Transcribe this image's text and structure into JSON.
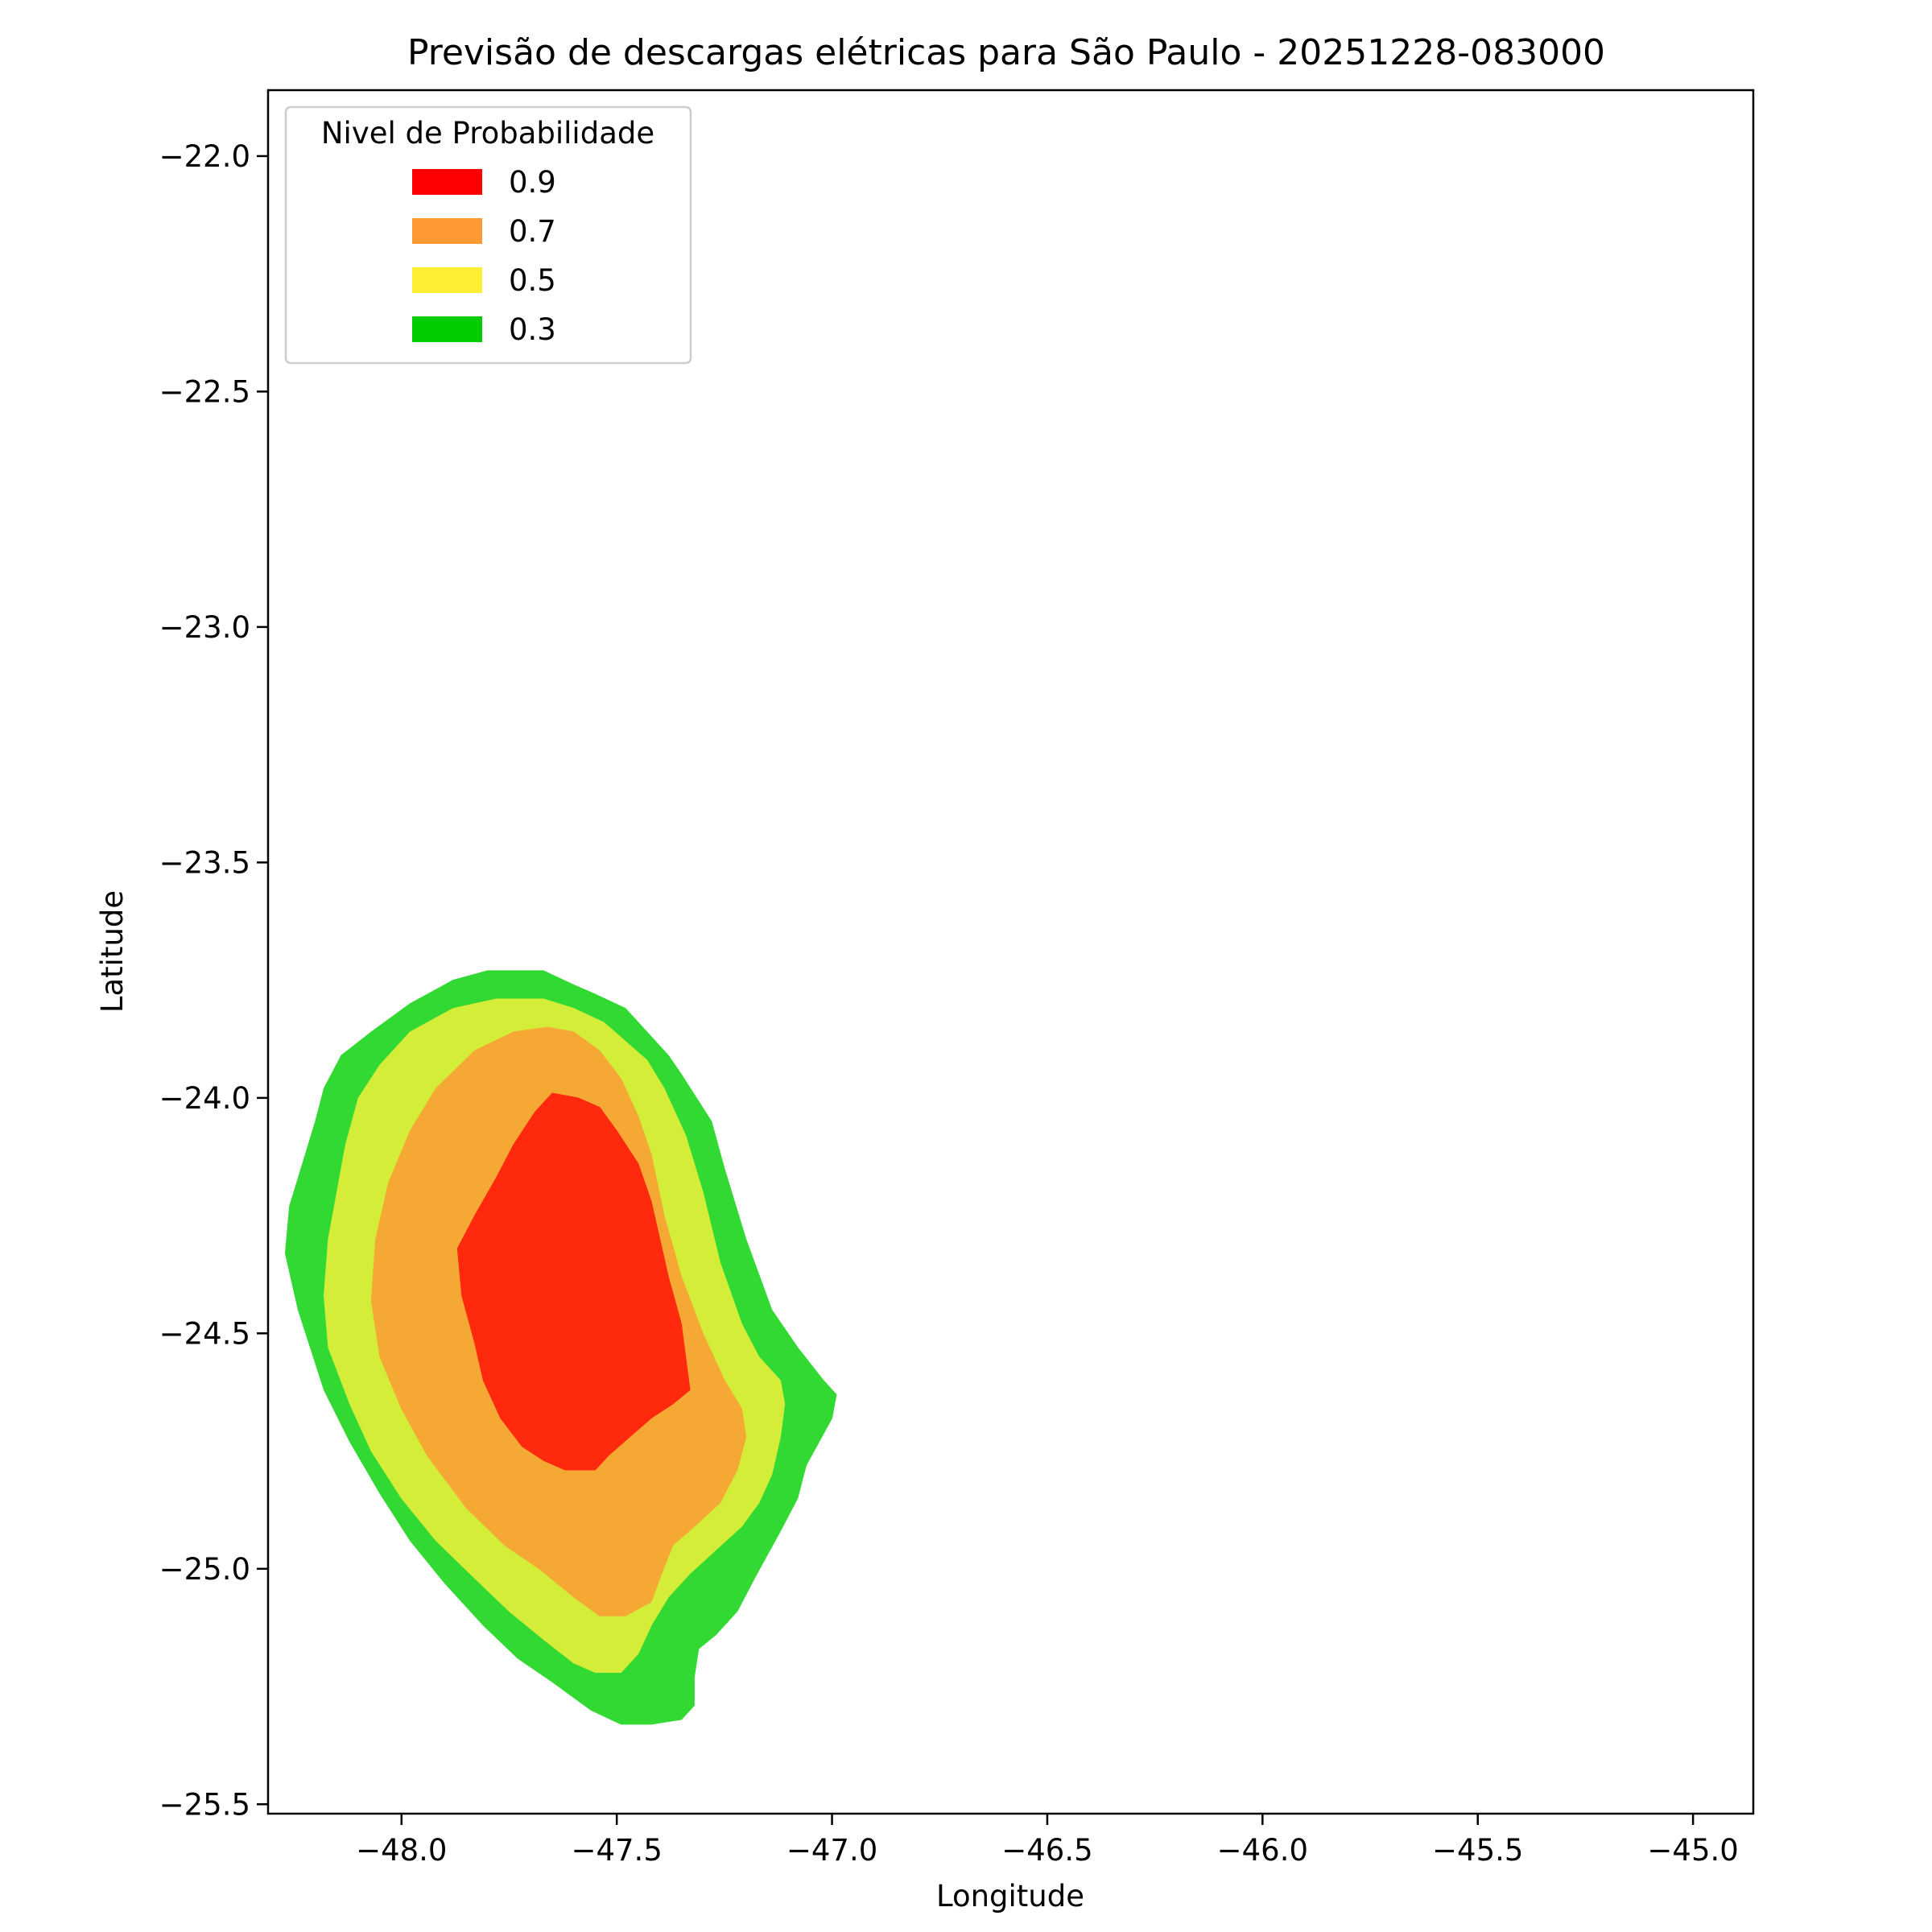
{
  "chart_data": {
    "type": "area",
    "title": "Previsão de descargas elétricas para São Paulo - 20251228-083000",
    "xlabel": "Longitude",
    "ylabel": "Latitude",
    "xlim": [
      -48.31,
      -44.86
    ],
    "ylim": [
      -25.52,
      -21.86
    ],
    "xticks": [
      -48.0,
      -47.5,
      -47.0,
      -46.5,
      -46.0,
      -45.5,
      -45.0
    ],
    "yticks": [
      -22.0,
      -22.5,
      -23.0,
      -23.5,
      -24.0,
      -24.5,
      -25.0,
      -25.5
    ],
    "xtick_labels": [
      "−48.0",
      "−47.5",
      "−47.0",
      "−46.5",
      "−46.0",
      "−45.5",
      "−45.0"
    ],
    "ytick_labels": [
      "−22.0",
      "−22.5",
      "−23.0",
      "−23.5",
      "−24.0",
      "−24.5",
      "−25.0",
      "−25.5"
    ],
    "grid": false,
    "legend": {
      "title": "Nivel de Probabilidade",
      "position": "top-left",
      "entries": [
        {
          "label": "0.9",
          "color": "#ff0000"
        },
        {
          "label": "0.7",
          "color": "#ff9933"
        },
        {
          "label": "0.5",
          "color": "#ffee33"
        },
        {
          "label": "0.3",
          "color": "#00cc00"
        }
      ]
    },
    "series": [
      {
        "name": "0.3",
        "fill_color": "#33d933",
        "polygon": [
          [
            -47.67,
            -23.73
          ],
          [
            -47.6,
            -23.76
          ],
          [
            -47.55,
            -23.78
          ],
          [
            -47.48,
            -23.81
          ],
          [
            -47.43,
            -23.86
          ],
          [
            -47.38,
            -23.91
          ],
          [
            -47.35,
            -23.95
          ],
          [
            -47.28,
            -24.05
          ],
          [
            -47.25,
            -24.15
          ],
          [
            -47.2,
            -24.3
          ],
          [
            -47.14,
            -24.45
          ],
          [
            -47.08,
            -24.53
          ],
          [
            -47.02,
            -24.6
          ],
          [
            -46.99,
            -24.63
          ],
          [
            -47.0,
            -24.68
          ],
          [
            -47.03,
            -24.73
          ],
          [
            -47.06,
            -24.78
          ],
          [
            -47.08,
            -24.85
          ],
          [
            -47.12,
            -24.92
          ],
          [
            -47.15,
            -24.97
          ],
          [
            -47.18,
            -25.02
          ],
          [
            -47.22,
            -25.09
          ],
          [
            -47.27,
            -25.14
          ],
          [
            -47.31,
            -25.17
          ],
          [
            -47.32,
            -25.23
          ],
          [
            -47.32,
            -25.29
          ],
          [
            -47.35,
            -25.32
          ],
          [
            -47.42,
            -25.33
          ],
          [
            -47.49,
            -25.33
          ],
          [
            -47.56,
            -25.3
          ],
          [
            -47.65,
            -25.24
          ],
          [
            -47.73,
            -25.19
          ],
          [
            -47.81,
            -25.12
          ],
          [
            -47.9,
            -25.03
          ],
          [
            -47.98,
            -24.94
          ],
          [
            -48.05,
            -24.84
          ],
          [
            -48.12,
            -24.73
          ],
          [
            -48.18,
            -24.62
          ],
          [
            -48.24,
            -24.45
          ],
          [
            -48.27,
            -24.33
          ],
          [
            -48.26,
            -24.23
          ],
          [
            -48.23,
            -24.14
          ],
          [
            -48.2,
            -24.05
          ],
          [
            -48.18,
            -23.98
          ],
          [
            -48.14,
            -23.91
          ],
          [
            -48.07,
            -23.86
          ],
          [
            -47.98,
            -23.8
          ],
          [
            -47.88,
            -23.75
          ],
          [
            -47.8,
            -23.73
          ]
        ]
      },
      {
        "name": "0.5",
        "fill_color": "#d4ed38",
        "polygon": [
          [
            -47.67,
            -23.79
          ],
          [
            -47.6,
            -23.81
          ],
          [
            -47.53,
            -23.84
          ],
          [
            -47.48,
            -23.88
          ],
          [
            -47.43,
            -23.92
          ],
          [
            -47.39,
            -23.98
          ],
          [
            -47.34,
            -24.08
          ],
          [
            -47.3,
            -24.2
          ],
          [
            -47.26,
            -24.35
          ],
          [
            -47.21,
            -24.48
          ],
          [
            -47.17,
            -24.55
          ],
          [
            -47.12,
            -24.6
          ],
          [
            -47.11,
            -24.65
          ],
          [
            -47.12,
            -24.72
          ],
          [
            -47.14,
            -24.8
          ],
          [
            -47.17,
            -24.86
          ],
          [
            -47.21,
            -24.91
          ],
          [
            -47.27,
            -24.96
          ],
          [
            -47.33,
            -25.01
          ],
          [
            -47.38,
            -25.06
          ],
          [
            -47.42,
            -25.12
          ],
          [
            -47.45,
            -25.18
          ],
          [
            -47.49,
            -25.22
          ],
          [
            -47.55,
            -25.22
          ],
          [
            -47.6,
            -25.2
          ],
          [
            -47.67,
            -25.15
          ],
          [
            -47.75,
            -25.09
          ],
          [
            -47.83,
            -25.02
          ],
          [
            -47.92,
            -24.94
          ],
          [
            -48.0,
            -24.85
          ],
          [
            -48.07,
            -24.75
          ],
          [
            -48.12,
            -24.65
          ],
          [
            -48.17,
            -24.53
          ],
          [
            -48.18,
            -24.42
          ],
          [
            -48.17,
            -24.3
          ],
          [
            -48.15,
            -24.2
          ],
          [
            -48.13,
            -24.1
          ],
          [
            -48.1,
            -24.0
          ],
          [
            -48.05,
            -23.93
          ],
          [
            -47.98,
            -23.86
          ],
          [
            -47.88,
            -23.81
          ],
          [
            -47.78,
            -23.79
          ]
        ]
      },
      {
        "name": "0.7",
        "fill_color": "#f5a934",
        "polygon": [
          [
            -47.66,
            -23.85
          ],
          [
            -47.6,
            -23.86
          ],
          [
            -47.54,
            -23.9
          ],
          [
            -47.49,
            -23.96
          ],
          [
            -47.45,
            -24.04
          ],
          [
            -47.42,
            -24.12
          ],
          [
            -47.39,
            -24.25
          ],
          [
            -47.35,
            -24.38
          ],
          [
            -47.3,
            -24.5
          ],
          [
            -47.25,
            -24.6
          ],
          [
            -47.21,
            -24.66
          ],
          [
            -47.2,
            -24.72
          ],
          [
            -47.22,
            -24.79
          ],
          [
            -47.26,
            -24.86
          ],
          [
            -47.32,
            -24.91
          ],
          [
            -47.37,
            -24.95
          ],
          [
            -47.4,
            -25.02
          ],
          [
            -47.42,
            -25.07
          ],
          [
            -47.48,
            -25.1
          ],
          [
            -47.54,
            -25.1
          ],
          [
            -47.6,
            -25.06
          ],
          [
            -47.68,
            -25.0
          ],
          [
            -47.76,
            -24.95
          ],
          [
            -47.85,
            -24.87
          ],
          [
            -47.94,
            -24.76
          ],
          [
            -48.0,
            -24.66
          ],
          [
            -48.05,
            -24.55
          ],
          [
            -48.07,
            -24.43
          ],
          [
            -48.06,
            -24.3
          ],
          [
            -48.03,
            -24.18
          ],
          [
            -47.98,
            -24.07
          ],
          [
            -47.92,
            -23.98
          ],
          [
            -47.83,
            -23.9
          ],
          [
            -47.74,
            -23.86
          ]
        ]
      },
      {
        "name": "0.9",
        "fill_color": "#ff2a0e",
        "polygon": [
          [
            -47.65,
            -23.99
          ],
          [
            -47.59,
            -24.0
          ],
          [
            -47.54,
            -24.02
          ],
          [
            -47.5,
            -24.07
          ],
          [
            -47.45,
            -24.14
          ],
          [
            -47.42,
            -24.22
          ],
          [
            -47.4,
            -24.3
          ],
          [
            -47.38,
            -24.38
          ],
          [
            -47.35,
            -24.48
          ],
          [
            -47.34,
            -24.55
          ],
          [
            -47.33,
            -24.62
          ],
          [
            -47.37,
            -24.65
          ],
          [
            -47.42,
            -24.68
          ],
          [
            -47.47,
            -24.72
          ],
          [
            -47.52,
            -24.76
          ],
          [
            -47.55,
            -24.79
          ],
          [
            -47.62,
            -24.79
          ],
          [
            -47.67,
            -24.77
          ],
          [
            -47.72,
            -24.74
          ],
          [
            -47.77,
            -24.68
          ],
          [
            -47.81,
            -24.6
          ],
          [
            -47.83,
            -24.52
          ],
          [
            -47.86,
            -24.42
          ],
          [
            -47.87,
            -24.32
          ],
          [
            -47.83,
            -24.25
          ],
          [
            -47.78,
            -24.17
          ],
          [
            -47.74,
            -24.1
          ],
          [
            -47.69,
            -24.03
          ]
        ]
      }
    ]
  }
}
